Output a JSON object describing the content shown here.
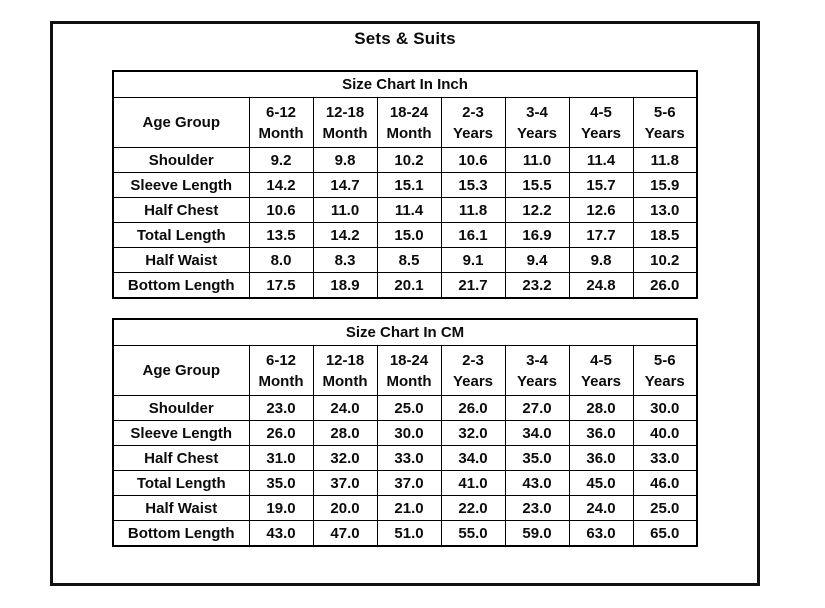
{
  "title": "Sets & Suits",
  "tables": [
    {
      "caption": "Size Chart In Inch",
      "header": {
        "label": "Age Group",
        "cols": [
          {
            "l1": "6-12",
            "l2": "Month"
          },
          {
            "l1": "12-18",
            "l2": "Month"
          },
          {
            "l1": "18-24",
            "l2": "Month"
          },
          {
            "l1": "2-3",
            "l2": "Years"
          },
          {
            "l1": "3-4",
            "l2": "Years"
          },
          {
            "l1": "4-5",
            "l2": "Years"
          },
          {
            "l1": "5-6",
            "l2": "Years"
          }
        ]
      },
      "rows": [
        {
          "label": "Shoulder",
          "values": [
            "9.2",
            "9.8",
            "10.2",
            "10.6",
            "11.0",
            "11.4",
            "11.8"
          ]
        },
        {
          "label": "Sleeve Length",
          "values": [
            "14.2",
            "14.7",
            "15.1",
            "15.3",
            "15.5",
            "15.7",
            "15.9"
          ]
        },
        {
          "label": "Half Chest",
          "values": [
            "10.6",
            "11.0",
            "11.4",
            "11.8",
            "12.2",
            "12.6",
            "13.0"
          ]
        },
        {
          "label": "Total Length",
          "values": [
            "13.5",
            "14.2",
            "15.0",
            "16.1",
            "16.9",
            "17.7",
            "18.5"
          ]
        },
        {
          "label": "Half Waist",
          "values": [
            "8.0",
            "8.3",
            "8.5",
            "9.1",
            "9.4",
            "9.8",
            "10.2"
          ]
        },
        {
          "label": "Bottom Length",
          "values": [
            "17.5",
            "18.9",
            "20.1",
            "21.7",
            "23.2",
            "24.8",
            "26.0"
          ]
        }
      ]
    },
    {
      "caption": "Size Chart In CM",
      "header": {
        "label": "Age Group",
        "cols": [
          {
            "l1": "6-12",
            "l2": "Month"
          },
          {
            "l1": "12-18",
            "l2": "Month"
          },
          {
            "l1": "18-24",
            "l2": "Month"
          },
          {
            "l1": "2-3",
            "l2": "Years"
          },
          {
            "l1": "3-4",
            "l2": "Years"
          },
          {
            "l1": "4-5",
            "l2": "Years"
          },
          {
            "l1": "5-6",
            "l2": "Years"
          }
        ]
      },
      "rows": [
        {
          "label": "Shoulder",
          "values": [
            "23.0",
            "24.0",
            "25.0",
            "26.0",
            "27.0",
            "28.0",
            "30.0"
          ]
        },
        {
          "label": "Sleeve Length",
          "values": [
            "26.0",
            "28.0",
            "30.0",
            "32.0",
            "34.0",
            "36.0",
            "40.0"
          ]
        },
        {
          "label": "Half Chest",
          "values": [
            "31.0",
            "32.0",
            "33.0",
            "34.0",
            "35.0",
            "36.0",
            "33.0"
          ]
        },
        {
          "label": "Total Length",
          "values": [
            "35.0",
            "37.0",
            "37.0",
            "41.0",
            "43.0",
            "45.0",
            "46.0"
          ]
        },
        {
          "label": "Half Waist",
          "values": [
            "19.0",
            "20.0",
            "21.0",
            "22.0",
            "23.0",
            "24.0",
            "25.0"
          ]
        },
        {
          "label": "Bottom Length",
          "values": [
            "43.0",
            "47.0",
            "51.0",
            "55.0",
            "59.0",
            "63.0",
            "65.0"
          ]
        }
      ]
    }
  ]
}
